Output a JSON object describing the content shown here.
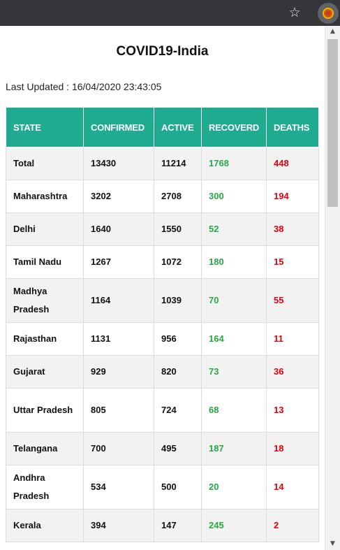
{
  "page": {
    "title": "COVID19-India",
    "last_updated": "Last Updated : 16/04/2020 23:43:05"
  },
  "table": {
    "headers": [
      "STATE",
      "CONFIRMED",
      "ACTIVE",
      "RECOVERD",
      "DEATHS"
    ],
    "rows": [
      [
        "Total",
        "13430",
        "11214",
        "1768",
        "448"
      ],
      [
        "Maharashtra",
        "3202",
        "2708",
        "300",
        "194"
      ],
      [
        "Delhi",
        "1640",
        "1550",
        "52",
        "38"
      ],
      [
        "Tamil Nadu",
        "1267",
        "1072",
        "180",
        "15"
      ],
      [
        "Madhya Pradesh",
        "1164",
        "1039",
        "70",
        "55"
      ],
      [
        "Rajasthan",
        "1131",
        "956",
        "164",
        "11"
      ],
      [
        "Gujarat",
        "929",
        "820",
        "73",
        "36"
      ],
      [
        "Uttar Pradesh",
        "805",
        "724",
        "68",
        "13"
      ],
      [
        "Telangana",
        "700",
        "495",
        "187",
        "18"
      ],
      [
        "Andhra Pradesh",
        "534",
        "500",
        "20",
        "14"
      ],
      [
        "Kerala",
        "394",
        "147",
        "245",
        "2"
      ]
    ]
  },
  "colors": {
    "header_bg": "#1fab8f",
    "recovered": "#28a745",
    "deaths": "#e3000f"
  },
  "browser": {
    "icons": [
      "star-icon",
      "extension-icon"
    ]
  }
}
